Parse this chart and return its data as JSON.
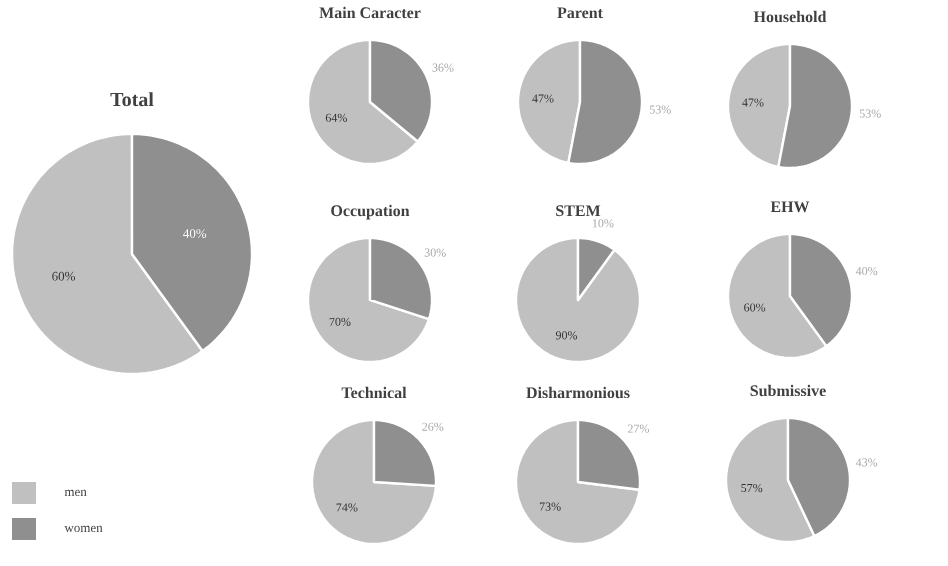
{
  "chart_data": [
    {
      "type": "pie",
      "title": "Total",
      "categories": [
        "men",
        "women"
      ],
      "values": [
        60,
        40
      ],
      "colors": [
        "#c0c0c0",
        "#8f8f8f"
      ],
      "value_labels": [
        "60%",
        "40%"
      ],
      "legend": "bottom left"
    },
    {
      "type": "pie",
      "title": "Main Caracter",
      "categories": [
        null,
        null
      ],
      "values": [
        64,
        36
      ],
      "colors": [
        "#c0c0c0",
        "#8f8f8f"
      ],
      "value_labels": [
        "64%",
        "36%"
      ]
    },
    {
      "type": "pie",
      "title": "Parent",
      "categories": [
        null,
        null
      ],
      "values": [
        47,
        53
      ],
      "colors": [
        "#c0c0c0",
        "#8f8f8f"
      ],
      "value_labels": [
        "47%",
        "53%"
      ]
    },
    {
      "type": "pie",
      "title": "Household",
      "categories": [
        null,
        null
      ],
      "values": [
        47,
        53
      ],
      "colors": [
        "#c0c0c0",
        "#8f8f8f"
      ],
      "value_labels": [
        "47%",
        "53%"
      ]
    },
    {
      "type": "pie",
      "title": "Occupation",
      "categories": [
        null,
        null
      ],
      "values": [
        70,
        30
      ],
      "colors": [
        "#c0c0c0",
        "#8f8f8f"
      ],
      "value_labels": [
        "70%",
        "30%"
      ]
    },
    {
      "type": "pie",
      "title": "STEM",
      "categories": [
        null,
        null
      ],
      "values": [
        90,
        10
      ],
      "colors": [
        "#c0c0c0",
        "#8f8f8f"
      ],
      "value_labels": [
        "90%",
        "10%"
      ]
    },
    {
      "type": "pie",
      "title": "EHW",
      "categories": [
        null,
        null
      ],
      "values": [
        60,
        40
      ],
      "colors": [
        "#c0c0c0",
        "#8f8f8f"
      ],
      "value_labels": [
        "60%",
        "40%"
      ]
    },
    {
      "type": "pie",
      "title": "Technical",
      "categories": [
        null,
        null
      ],
      "values": [
        74,
        26
      ],
      "colors": [
        "#c0c0c0",
        "#8f8f8f"
      ],
      "value_labels": [
        "74%",
        "26%"
      ]
    },
    {
      "type": "pie",
      "title": "Disharmonious",
      "categories": [
        null,
        null
      ],
      "values": [
        73,
        27
      ],
      "colors": [
        "#c0c0c0",
        "#8f8f8f"
      ],
      "value_labels": [
        "73%",
        "27%"
      ]
    },
    {
      "type": "pie",
      "title": "Submissive",
      "categories": [
        null,
        null
      ],
      "values": [
        57,
        43
      ],
      "colors": [
        "#c0c0c0",
        "#8f8f8f"
      ],
      "value_labels": [
        "57%",
        "43%"
      ]
    }
  ]
}
